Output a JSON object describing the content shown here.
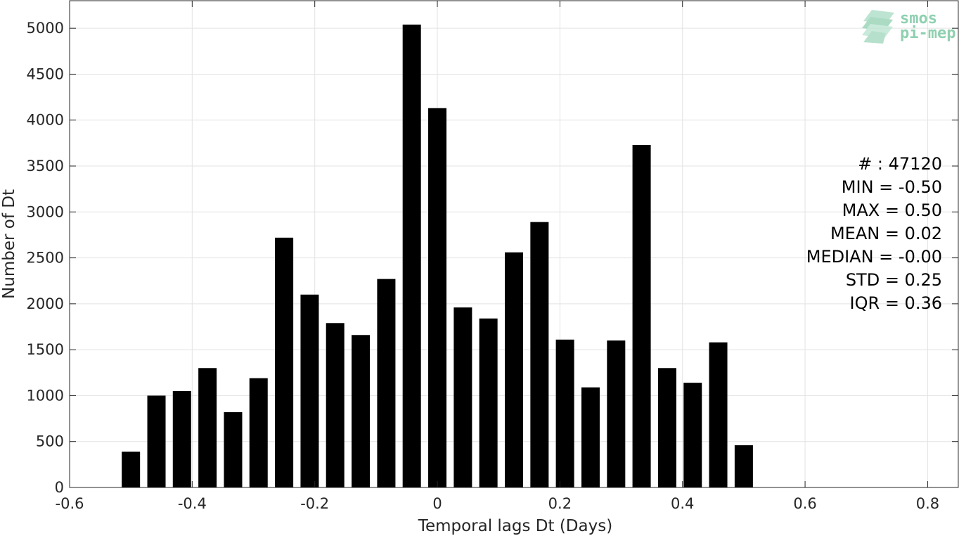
{
  "chart_data": {
    "type": "bar",
    "xlabel": "Temporal lags Dt (Days)",
    "ylabel": "Number of Dt",
    "xlim": [
      -0.6,
      0.85
    ],
    "ylim": [
      0,
      5300
    ],
    "xticks": [
      "-0.6",
      "-0.4",
      "-0.2",
      "0",
      "0.2",
      "0.4",
      "0.6",
      "0.8"
    ],
    "xtick_values": [
      -0.6,
      -0.4,
      -0.2,
      0,
      0.2,
      0.4,
      0.6,
      0.8
    ],
    "yticks": [
      "0",
      "500",
      "1000",
      "1500",
      "2000",
      "2500",
      "3000",
      "3500",
      "4000",
      "4500",
      "5000"
    ],
    "ytick_values": [
      0,
      500,
      1000,
      1500,
      2000,
      2500,
      3000,
      3500,
      4000,
      4500,
      5000
    ],
    "grid": true,
    "bar_color": "#000000",
    "x": [
      -0.5,
      -0.4583,
      -0.4167,
      -0.375,
      -0.3333,
      -0.2917,
      -0.25,
      -0.2083,
      -0.1667,
      -0.125,
      -0.0833,
      -0.0417,
      0.0,
      0.0417,
      0.0833,
      0.125,
      0.1667,
      0.2083,
      0.25,
      0.2917,
      0.3333,
      0.375,
      0.4167,
      0.4583,
      0.5
    ],
    "values": [
      390,
      1000,
      1050,
      1300,
      820,
      1190,
      2720,
      2100,
      1790,
      1660,
      2270,
      5040,
      4130,
      1960,
      1840,
      2560,
      2890,
      1610,
      1090,
      1600,
      3730,
      1300,
      1140,
      1580,
      460
    ],
    "annotations": [
      "# : 47120",
      "MIN = -0.50",
      "MAX =  0.50",
      "MEAN = 0.02",
      "MEDIAN = -0.00",
      "STD = 0.25",
      "IQR = 0.36"
    ]
  },
  "logo": {
    "line1": "smos",
    "line2": "pi-mep",
    "color": "#8fd0b0"
  }
}
